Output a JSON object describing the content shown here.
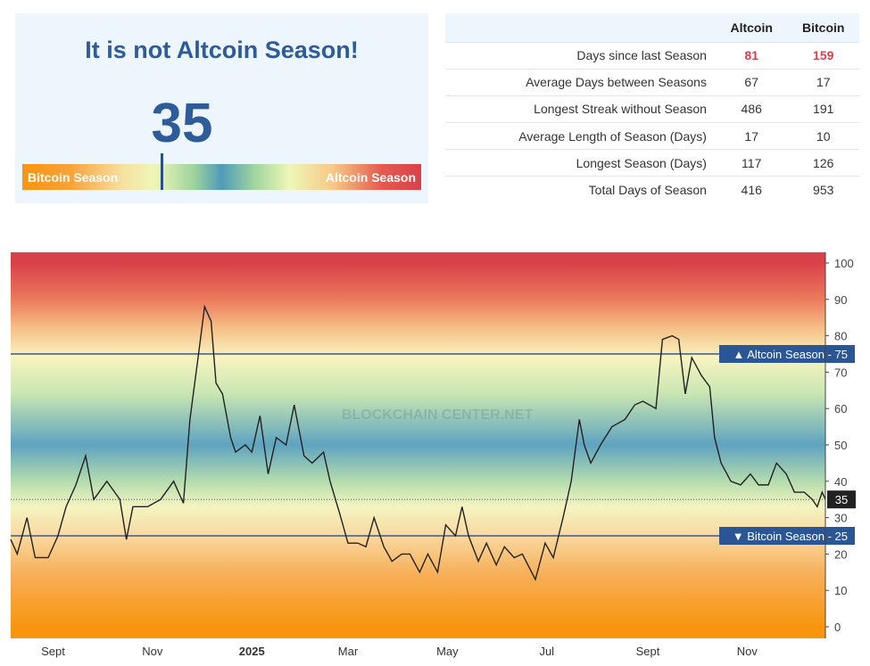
{
  "status": {
    "title": "It is not Altcoin Season!",
    "value": 35,
    "value_text": "35",
    "left_label": "Bitcoin Season",
    "right_label": "Altcoin Season"
  },
  "table": {
    "columns": [
      "",
      "Altcoin",
      "Bitcoin"
    ],
    "rows": [
      {
        "label": "Days since last Season",
        "altcoin": "81",
        "bitcoin": "159",
        "highlight": true
      },
      {
        "label": "Average Days between Seasons",
        "altcoin": "67",
        "bitcoin": "17"
      },
      {
        "label": "Longest Streak without Season",
        "altcoin": "486",
        "bitcoin": "191"
      },
      {
        "label": "Average Length of Season (Days)",
        "altcoin": "17",
        "bitcoin": "10"
      },
      {
        "label": "Longest Season (Days)",
        "altcoin": "117",
        "bitcoin": "126"
      },
      {
        "label": "Total Days of Season",
        "altcoin": "416",
        "bitcoin": "953"
      }
    ]
  },
  "colors": {
    "accent": "#2e5b9a",
    "highlight": "#d9414a",
    "altcoin_zone": "#d9414a",
    "bitcoin_zone": "#f7950f",
    "neutral_zone": "#5fa3c0"
  },
  "chart_data": {
    "type": "line",
    "title": "",
    "xlabel": "",
    "ylabel": "",
    "ylim": [
      0,
      100
    ],
    "xlim": [
      "2024-08-06",
      "2025-12-19"
    ],
    "y_ticks": [
      0,
      10,
      20,
      30,
      40,
      50,
      60,
      70,
      80,
      90,
      100
    ],
    "x_ticks": [
      {
        "date": "2024-09-01",
        "label": "Sept"
      },
      {
        "date": "2024-11-01",
        "label": "Nov"
      },
      {
        "date": "2025-01-01",
        "label": "2025"
      },
      {
        "date": "2025-03-01",
        "label": "Mar"
      },
      {
        "date": "2025-05-01",
        "label": "May"
      },
      {
        "date": "2025-07-01",
        "label": "Jul"
      },
      {
        "date": "2025-09-01",
        "label": "Sept"
      },
      {
        "date": "2025-11-01",
        "label": "Nov"
      }
    ],
    "watermark": "BLOCKCHAIN CENTER.NET",
    "reference_lines": [
      {
        "value": 75,
        "label": "▲ Altcoin Season - 75"
      },
      {
        "value": 25,
        "label": "▼ Bitcoin Season - 25"
      }
    ],
    "current": {
      "value": 35,
      "label": "35"
    },
    "series": [
      {
        "x": [
          "2024-08-06",
          "2024-08-10",
          "2024-08-16",
          "2024-08-21",
          "2024-08-29",
          "2024-09-04",
          "2024-09-09",
          "2024-09-15",
          "2024-09-21",
          "2024-09-26",
          "2024-10-04",
          "2024-10-12",
          "2024-10-16",
          "2024-10-20",
          "2024-10-29",
          "2024-11-06",
          "2024-11-14",
          "2024-11-20",
          "2024-11-24",
          "2024-11-29",
          "2024-12-03",
          "2024-12-07",
          "2024-12-10",
          "2024-12-14",
          "2024-12-19",
          "2024-12-22",
          "2024-12-28",
          "2025-01-01",
          "2025-01-06",
          "2025-01-11",
          "2025-01-16",
          "2025-01-22",
          "2025-01-27",
          "2025-02-02",
          "2025-02-07",
          "2025-02-14",
          "2025-02-18",
          "2025-02-24",
          "2025-03-01",
          "2025-03-07",
          "2025-03-12",
          "2025-03-17",
          "2025-03-23",
          "2025-03-28",
          "2025-04-03",
          "2025-04-08",
          "2025-04-14",
          "2025-04-19",
          "2025-04-25",
          "2025-04-30",
          "2025-05-06",
          "2025-05-10",
          "2025-05-14",
          "2025-05-20",
          "2025-05-25",
          "2025-05-31",
          "2025-06-05",
          "2025-06-11",
          "2025-06-16",
          "2025-06-24",
          "2025-06-30",
          "2025-07-05",
          "2025-07-11",
          "2025-07-16",
          "2025-07-21",
          "2025-07-24",
          "2025-07-28",
          "2025-08-03",
          "2025-08-10",
          "2025-08-18",
          "2025-08-24",
          "2025-08-29",
          "2025-09-06",
          "2025-09-10",
          "2025-09-16",
          "2025-09-20",
          "2025-09-24",
          "2025-09-28",
          "2025-10-04",
          "2025-10-09",
          "2025-10-12",
          "2025-10-16",
          "2025-10-22",
          "2025-10-28",
          "2025-11-03",
          "2025-11-08",
          "2025-11-14",
          "2025-11-19",
          "2025-11-25",
          "2025-11-30",
          "2025-12-06",
          "2025-12-11",
          "2025-12-14",
          "2025-12-17",
          "2025-12-19"
        ],
        "y": [
          24,
          20,
          30,
          19,
          19,
          25,
          33,
          39,
          47,
          35,
          40,
          35,
          24,
          33,
          33,
          35,
          40,
          34,
          57,
          74,
          88,
          84,
          67,
          64,
          52,
          48,
          50,
          48,
          58,
          42,
          52,
          50,
          61,
          47,
          45,
          48,
          40,
          31,
          23,
          23,
          22,
          30,
          22,
          18,
          20,
          20,
          15,
          20,
          15,
          28,
          25,
          33,
          25,
          18,
          23,
          17,
          22,
          19,
          20,
          13,
          23,
          19,
          30,
          40,
          57,
          50,
          45,
          50,
          55,
          57,
          61,
          62,
          60,
          79,
          80,
          79,
          64,
          74,
          69,
          66,
          52,
          45,
          40,
          39,
          42,
          39,
          39,
          45,
          42,
          37,
          37,
          35,
          33,
          37,
          35
        ]
      }
    ]
  }
}
